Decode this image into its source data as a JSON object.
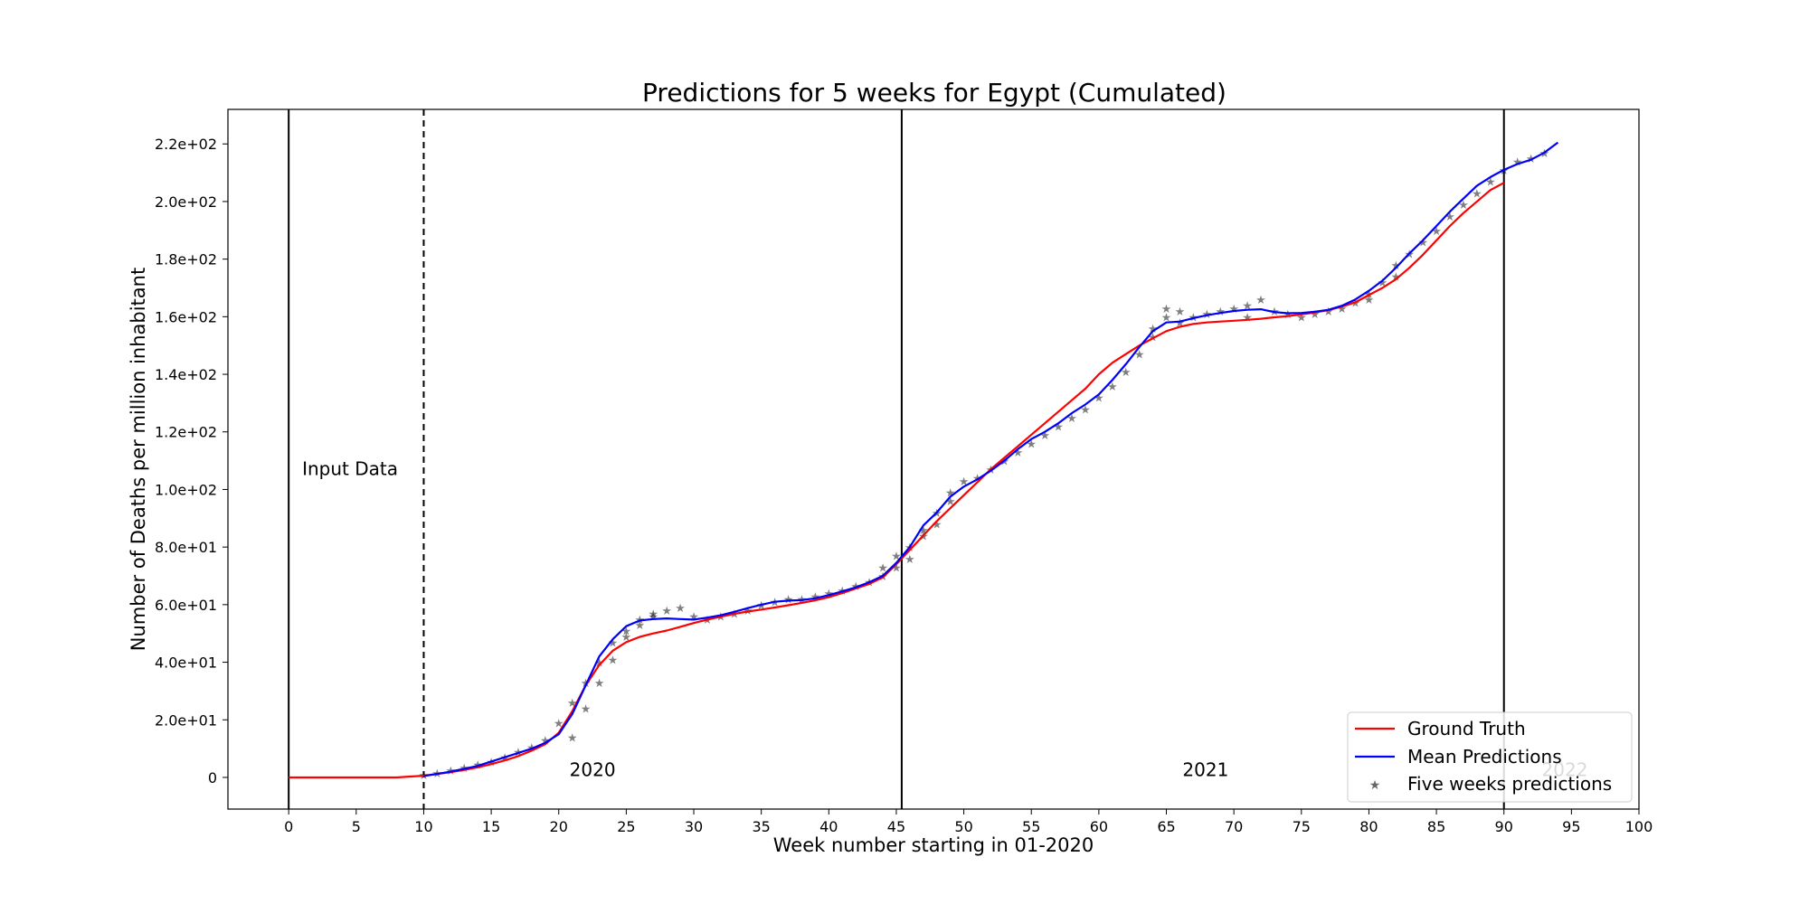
{
  "chart_data": {
    "type": "line",
    "title": "Predictions for 5 weeks for Egypt (Cumulated)",
    "xlabel": "Week number starting in 01-2020",
    "ylabel": "Number of Deaths per million inhabitant",
    "xlim": [
      -4.5,
      100
    ],
    "ylim": [
      -11,
      232
    ],
    "xticks": [
      0,
      5,
      10,
      15,
      20,
      25,
      30,
      35,
      40,
      45,
      50,
      55,
      60,
      65,
      70,
      75,
      80,
      85,
      90,
      95,
      100
    ],
    "yticks": [
      0,
      20,
      40,
      60,
      80,
      100,
      120,
      140,
      160,
      180,
      200,
      220
    ],
    "ytick_labels": [
      "0",
      "2.0e+01",
      "4.0e+01",
      "6.0e+01",
      "8.0e+01",
      "1.0e+02",
      "1.2e+02",
      "1.4e+02",
      "1.6e+02",
      "1.8e+02",
      "2.0e+02",
      "2.2e+02"
    ],
    "grid": false,
    "legend_position": "bottom-right",
    "vlines": [
      {
        "x": 0,
        "style": "solid"
      },
      {
        "x": 10,
        "style": "dashed"
      },
      {
        "x": 45.4,
        "style": "solid"
      },
      {
        "x": 90,
        "style": "solid"
      }
    ],
    "annotations": [
      {
        "text": "Input Data",
        "x": 1,
        "y": 105
      },
      {
        "text": "2020",
        "x": 20.8,
        "y": 0.5
      },
      {
        "text": "2021",
        "x": 66.2,
        "y": 0.5
      },
      {
        "text": "2022",
        "x": 92.8,
        "y": 0.5,
        "faded": true
      }
    ],
    "series": [
      {
        "name": "Ground Truth",
        "color": "#ff0000",
        "x": [
          0,
          2,
          4,
          6,
          8,
          9,
          10,
          11,
          12,
          13,
          14,
          15,
          16,
          17,
          18,
          19,
          20,
          21,
          22,
          23,
          24,
          25,
          26,
          27,
          28,
          29,
          30,
          31,
          32,
          33,
          34,
          35,
          36,
          37,
          38,
          39,
          40,
          41,
          42,
          43,
          44,
          45,
          46,
          47,
          48,
          49,
          50,
          51,
          52,
          53,
          54,
          55,
          56,
          57,
          58,
          59,
          60,
          61,
          62,
          63,
          64,
          65,
          66,
          67,
          68,
          69,
          70,
          71,
          72,
          73,
          74,
          75,
          76,
          77,
          78,
          79,
          80,
          81,
          82,
          83,
          84,
          85,
          86,
          87,
          88,
          89,
          90
        ],
        "y": [
          0,
          0,
          0,
          0,
          0,
          0.3,
          0.6,
          1.2,
          1.8,
          2.6,
          3.5,
          4.6,
          5.9,
          7.4,
          9.3,
          11.5,
          15.5,
          23,
          32,
          39,
          44,
          47,
          48.8,
          50,
          51,
          52.3,
          53.6,
          54.8,
          55.8,
          56.8,
          57.6,
          58.3,
          59,
          59.8,
          60.6,
          61.5,
          62.6,
          64,
          65.6,
          67.2,
          69.5,
          74,
          79,
          84,
          89,
          93.5,
          98,
          102.5,
          107,
          111,
          115,
          119,
          123,
          127,
          131,
          135,
          140,
          144,
          147,
          150,
          152.5,
          155,
          156.5,
          157.5,
          158,
          158.3,
          158.6,
          158.9,
          159.3,
          159.8,
          160.2,
          160.8,
          161.5,
          162.3,
          163.5,
          165,
          167.5,
          170,
          173,
          177,
          181.5,
          186.5,
          191.5,
          196,
          200,
          204,
          206.5
        ]
      },
      {
        "name": "Mean Predictions",
        "color": "#0000ff",
        "x": [
          10,
          11,
          12,
          13,
          14,
          15,
          16,
          17,
          18,
          19,
          20,
          21,
          22,
          23,
          24,
          25,
          26,
          27,
          28,
          29,
          30,
          31,
          32,
          33,
          34,
          35,
          36,
          37,
          38,
          39,
          40,
          41,
          42,
          43,
          44,
          45,
          46,
          47,
          48,
          49,
          50,
          51,
          52,
          53,
          54,
          55,
          56,
          57,
          58,
          59,
          60,
          61,
          62,
          63,
          64,
          65,
          66,
          67,
          68,
          69,
          70,
          71,
          72,
          73,
          74,
          75,
          76,
          77,
          78,
          79,
          80,
          81,
          82,
          83,
          84,
          85,
          86,
          87,
          88,
          89,
          90,
          91,
          92,
          93,
          94
        ],
        "y": [
          0.5,
          1.2,
          2,
          3,
          4,
          5.5,
          7,
          8.5,
          10,
          12,
          15,
          22,
          32,
          42,
          48,
          52.5,
          54.5,
          55,
          55.2,
          55,
          54.8,
          55.5,
          56.3,
          57.5,
          58.8,
          60,
          61,
          61.4,
          61.6,
          62.2,
          63.3,
          64.6,
          66,
          67.8,
          70,
          74.5,
          80,
          87.5,
          92,
          97.5,
          101,
          103.5,
          106.5,
          110,
          114,
          117.5,
          120,
          123,
          126.5,
          129.5,
          133,
          138,
          143.5,
          149.5,
          155,
          158,
          158.3,
          159.5,
          160.5,
          161.3,
          162,
          162.4,
          162.6,
          161.6,
          161.2,
          161.3,
          161.7,
          162.4,
          163.8,
          166,
          169,
          172.5,
          177,
          182,
          186.5,
          191.5,
          196.5,
          201,
          205.5,
          208.5,
          211,
          213,
          214.5,
          217,
          220.5
        ]
      }
    ],
    "scatter": {
      "name": "Five weeks predictions",
      "marker": "star",
      "colors": [
        "#1f77b4",
        "#ff7f0e",
        "#2ca02c",
        "#d62728",
        "#9467bd",
        "#8c564b",
        "#e377c2",
        "#7f7f7f",
        "#bcbd22",
        "#17becf"
      ],
      "x": [
        10,
        11,
        12,
        13,
        14,
        15,
        16,
        17,
        18,
        19,
        20,
        21,
        21,
        22,
        22,
        23,
        23,
        24,
        24,
        25,
        25,
        26,
        26,
        27,
        27,
        28,
        29,
        30,
        31,
        32,
        33,
        34,
        35,
        36,
        37,
        38,
        39,
        40,
        41,
        42,
        43,
        44,
        44,
        45,
        45,
        46,
        46,
        47,
        47,
        48,
        48,
        49,
        49,
        50,
        51,
        52,
        53,
        54,
        55,
        56,
        57,
        58,
        59,
        60,
        61,
        62,
        63,
        64,
        64,
        65,
        65,
        66,
        66,
        67,
        68,
        69,
        70,
        71,
        71,
        72,
        73,
        74,
        75,
        76,
        77,
        78,
        79,
        80,
        80,
        81,
        82,
        82,
        83,
        84,
        85,
        86,
        87,
        88,
        89,
        90,
        91,
        92,
        93
      ],
      "y": [
        1,
        1.5,
        2.5,
        3.5,
        4.5,
        5.5,
        7,
        9,
        10.5,
        13,
        19,
        26,
        14,
        33,
        24,
        40,
        33,
        47,
        41,
        51,
        49,
        55,
        53,
        57,
        56,
        58,
        59,
        56,
        55,
        56,
        57,
        58,
        60,
        61,
        62,
        62,
        63,
        64,
        65,
        66.5,
        68,
        70,
        73,
        73,
        77,
        80,
        76,
        86,
        84,
        92,
        88,
        99,
        96,
        103,
        104,
        107,
        110,
        113,
        116,
        119,
        122,
        125,
        128,
        132,
        136,
        141,
        147,
        153,
        156,
        160,
        163,
        162,
        158,
        160,
        161,
        162,
        163,
        164,
        160,
        166,
        162,
        161,
        160,
        161,
        162,
        163,
        165,
        168,
        166,
        172,
        178,
        174,
        182,
        186,
        190,
        195,
        199,
        203,
        207,
        211,
        214,
        215,
        217
      ]
    }
  }
}
